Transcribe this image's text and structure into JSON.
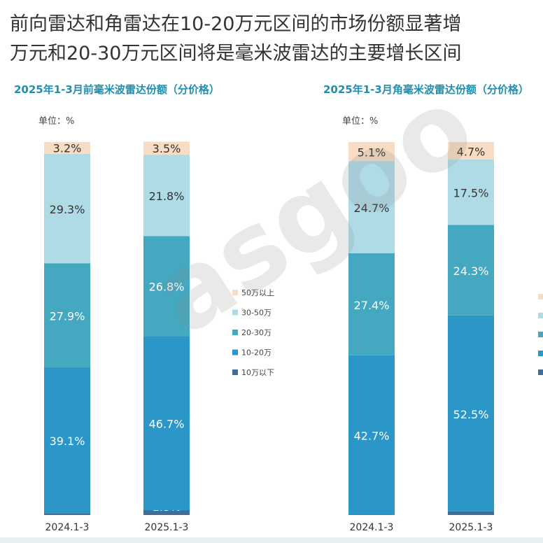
{
  "headline": {
    "line1": "前向雷达和角雷达在10-20万元区间的市场份额显著增",
    "line2": "万元和20-30万元区间将是毫米波雷达的主要增长区间"
  },
  "colors": {
    "title_teal": "#1f8fb0",
    "seg_50plus": "#f8dcc3",
    "seg_30_50": "#aedbe6",
    "seg_20_30": "#44a9c0",
    "seg_10_20": "#2b96c8",
    "seg_below10": "#3f6e97"
  },
  "chart_data": [
    {
      "type": "bar",
      "stacked": true,
      "title": "2025年1-3月前毫米波雷达份额（分价格）",
      "unit_label": "单位：%",
      "categories": [
        "2024.1-3",
        "2025.1-3"
      ],
      "series": [
        {
          "name": "10万以下",
          "values": [
            0.5,
            1.3
          ],
          "labels": [
            "0.5%",
            "1.3%"
          ]
        },
        {
          "name": "10-20万",
          "values": [
            39.1,
            46.7
          ],
          "labels": [
            "39.1%",
            "46.7%"
          ]
        },
        {
          "name": "20-30万",
          "values": [
            27.9,
            26.8
          ],
          "labels": [
            "27.9%",
            "26.8%"
          ]
        },
        {
          "name": "30-50万",
          "values": [
            29.3,
            21.8
          ],
          "labels": [
            "29.3%",
            "21.8%"
          ]
        },
        {
          "name": "50万以上",
          "values": [
            3.2,
            3.5
          ],
          "labels": [
            "3.2%",
            "3.5%"
          ]
        }
      ],
      "legend": [
        "50万以上",
        "30-50万",
        "20-30万",
        "10-20万",
        "10万以下"
      ],
      "ylim": [
        0,
        100
      ]
    },
    {
      "type": "bar",
      "stacked": true,
      "title": "2025年1-3月角毫米波雷达份额（分价格）",
      "unit_label": "单位：%",
      "categories": [
        "2024.1-3",
        "2025.1-3"
      ],
      "series": [
        {
          "name": "10万以下",
          "values": [
            0.1,
            1.0
          ],
          "labels": [
            "0.1%",
            "1.0%"
          ]
        },
        {
          "name": "10-20万",
          "values": [
            42.7,
            52.5
          ],
          "labels": [
            "42.7%",
            "52.5%"
          ]
        },
        {
          "name": "20-30万",
          "values": [
            27.4,
            24.3
          ],
          "labels": [
            "27.4%",
            "24.3%"
          ]
        },
        {
          "name": "30-50万",
          "values": [
            24.7,
            17.5
          ],
          "labels": [
            "24.7%",
            "17.5%"
          ]
        },
        {
          "name": "50万以上",
          "values": [
            5.1,
            4.7
          ],
          "labels": [
            "5.1%",
            "4.7%"
          ]
        }
      ],
      "ylim": [
        0,
        100
      ]
    }
  ]
}
